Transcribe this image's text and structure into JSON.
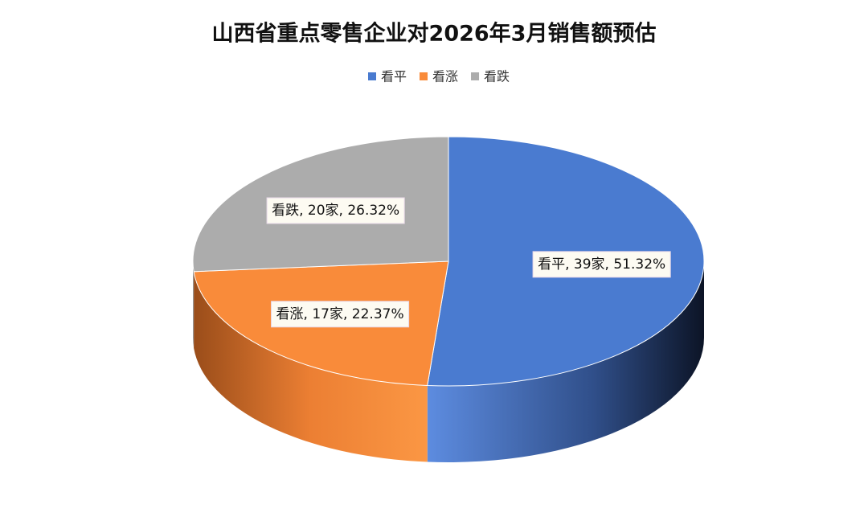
{
  "chart_data": {
    "type": "pie",
    "title": "山西省重点零售企业对2026年3月销售额预估",
    "categories": [
      "看平",
      "看涨",
      "看跌"
    ],
    "values": [
      39,
      17,
      20
    ],
    "value_labels": [
      "看平, 39家, 51.32%",
      "看涨, 17家, 22.37%",
      "看跌, 20家, 26.32%"
    ],
    "colors": [
      "#4a7bd0",
      "#f98b3a",
      "#acacac"
    ],
    "legend": "top"
  }
}
